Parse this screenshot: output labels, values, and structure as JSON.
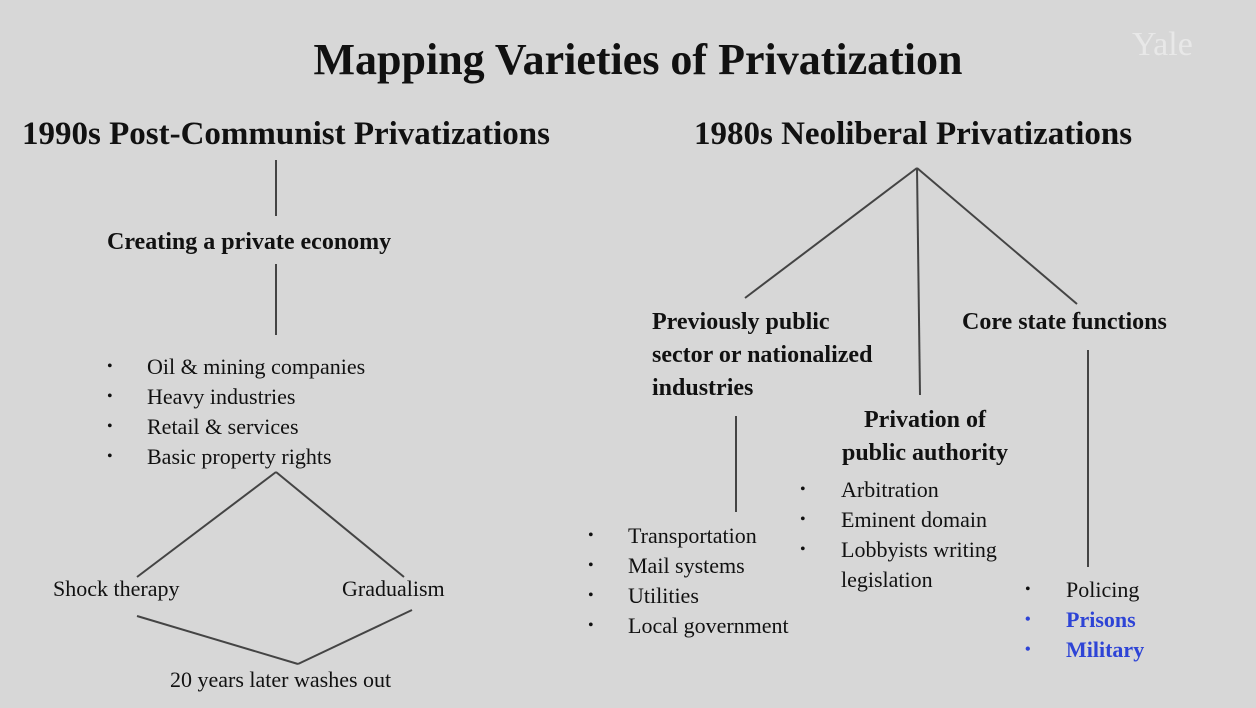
{
  "slide": {
    "title": "Mapping Varieties of Privatization",
    "watermark": "Yale"
  },
  "left": {
    "heading": "1990s Post-Communist Privatizations",
    "node": "Creating a private economy",
    "items": [
      "Oil & mining companies",
      "Heavy industries",
      "Retail & services",
      "Basic property rights"
    ],
    "branch_left": "Shock therapy",
    "branch_right": "Gradualism",
    "outcome": "20 years later washes out"
  },
  "right": {
    "heading": "1980s Neoliberal Privatizations",
    "public_sector": {
      "label_lines": [
        "Previously public",
        "sector or nationalized",
        "industries"
      ],
      "items": [
        "Transportation",
        "Mail systems",
        "Utilities",
        "Local government"
      ]
    },
    "public_authority": {
      "label_lines": [
        "Privation of",
        "public authority"
      ],
      "items": [
        "Arbitration",
        "Eminent domain",
        "Lobbyists writing",
        "legislation"
      ]
    },
    "core_state": {
      "label": "Core state functions",
      "items": [
        "Policing",
        "Prisons",
        "Military"
      ],
      "highlight_color": "#2e44d6"
    }
  },
  "bullet_symbol": "•"
}
